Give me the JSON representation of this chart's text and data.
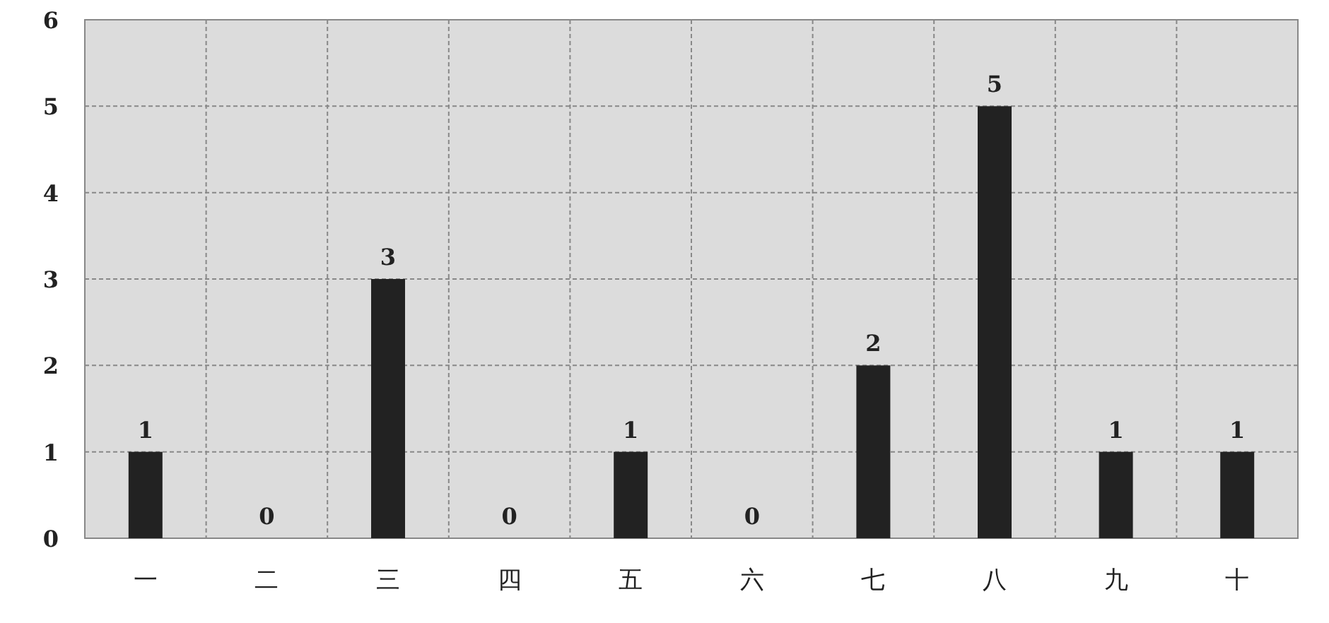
{
  "chart_data": {
    "type": "bar",
    "categories": [
      "一",
      "二",
      "三",
      "四",
      "五",
      "六",
      "七",
      "八",
      "九",
      "十"
    ],
    "values": [
      1,
      0,
      3,
      0,
      1,
      0,
      2,
      5,
      1,
      1
    ],
    "color": "#222222",
    "ylim": [
      0,
      6
    ],
    "yticks": [
      0,
      1,
      2,
      3,
      4,
      5,
      6
    ],
    "grid": true,
    "data_labels": true
  }
}
